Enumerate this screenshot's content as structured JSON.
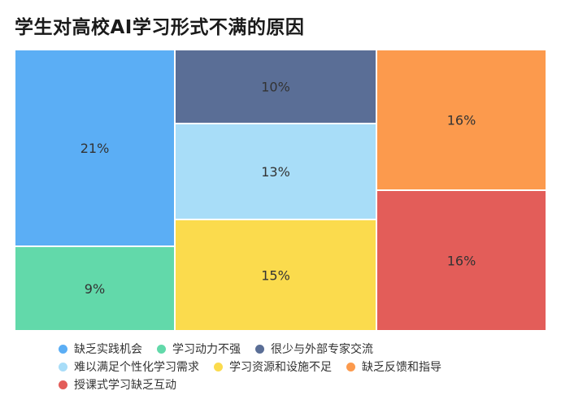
{
  "title": "学生对高校AI学习形式不满的原因",
  "chart_data": {
    "type": "treemap",
    "title": "学生对高校AI学习形式不满的原因",
    "unit": "%",
    "legend_position": "bottom",
    "items": [
      {
        "name": "缺乏实践机会",
        "value": 21,
        "label": "21%",
        "color": "#5BAEF5"
      },
      {
        "name": "学习动力不强",
        "value": 9,
        "label": "9%",
        "color": "#62D9AA"
      },
      {
        "name": "很少与外部专家交流",
        "value": 10,
        "label": "10%",
        "color": "#5A6E96"
      },
      {
        "name": "难以满足个性化学习需求",
        "value": 13,
        "label": "13%",
        "color": "#A8DDF8"
      },
      {
        "name": "学习资源和设施不足",
        "value": 15,
        "label": "15%",
        "color": "#FBDB4D"
      },
      {
        "name": "缺乏反馈和指导",
        "value": 16,
        "label": "16%",
        "color": "#FC9A4D"
      },
      {
        "name": "授课式学习缺乏互动",
        "value": 16,
        "label": "16%",
        "color": "#E35D59"
      }
    ]
  }
}
